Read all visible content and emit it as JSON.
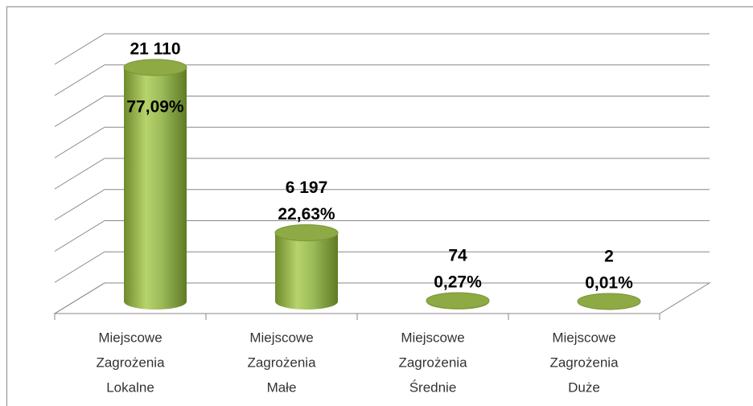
{
  "chart_data": {
    "type": "bar3d",
    "categories": [
      [
        "Miejscowe",
        "Zagrożenia",
        "Lokalne"
      ],
      [
        "Miejscowe",
        "Zagrożenia",
        "Małe"
      ],
      [
        "Miejscowe",
        "Zagrożenia",
        "Średnie"
      ],
      [
        "Miejscowe",
        "Zagrożenia",
        "Duże"
      ]
    ],
    "values": [
      21110,
      6197,
      74,
      2
    ],
    "value_labels": [
      "21 110",
      "6 197",
      "74",
      "2"
    ],
    "percentages": [
      77.09,
      22.63,
      0.27,
      0.01
    ],
    "percentage_labels": [
      "77,09%",
      "22,63%",
      "0,27%",
      "0,01%"
    ],
    "color": "#9bbb59",
    "ylim": [
      0,
      24000
    ],
    "yticks": [
      0,
      3000,
      6000,
      9000,
      12000,
      15000,
      18000,
      21000,
      24000
    ],
    "grid": true
  }
}
